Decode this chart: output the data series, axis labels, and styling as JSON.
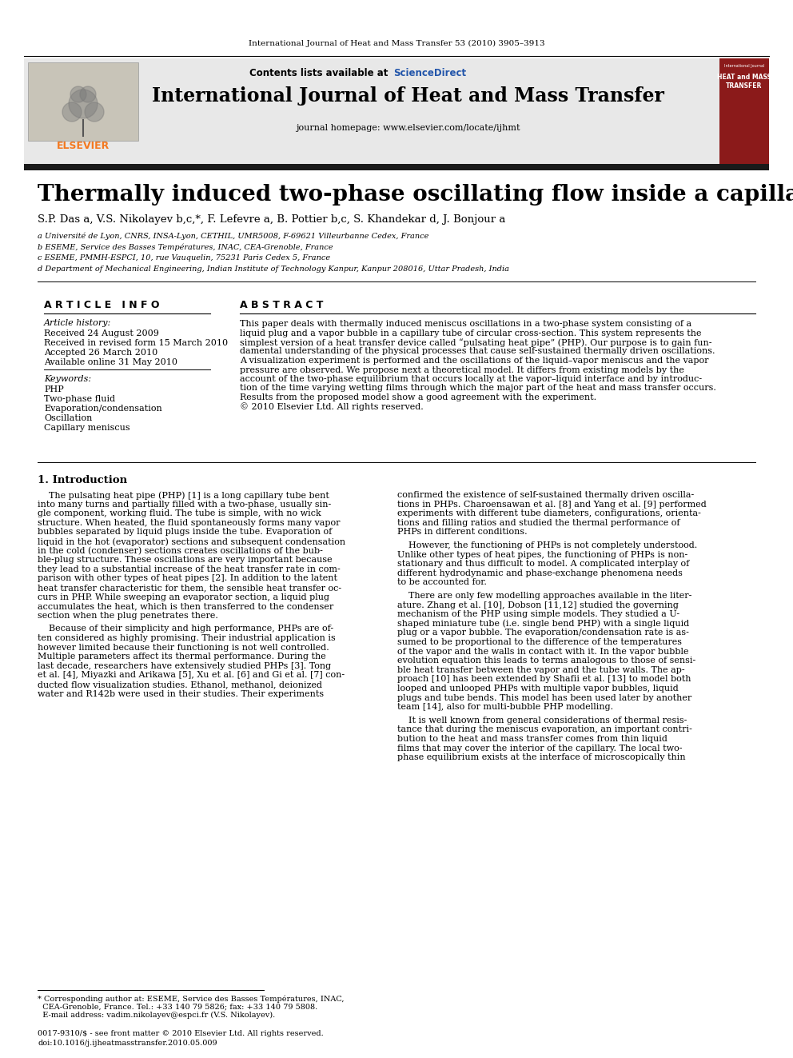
{
  "page_citation": "International Journal of Heat and Mass Transfer 53 (2010) 3905–3913",
  "journal_title": "International Journal of Heat and Mass Transfer",
  "journal_homepage": "journal homepage: www.elsevier.com/locate/ijhmt",
  "contents_available": "Contents lists available at ",
  "sciencedirect": "ScienceDirect",
  "article_title": "Thermally induced two-phase oscillating flow inside a capillary tube",
  "authors_text": "S.P. Das a, V.S. Nikolayev b,c,*, F. Lefevre a, B. Pottier b,c, S. Khandekar d, J. Bonjour a",
  "affil_a": "a Université de Lyon, CNRS, INSA-Lyon, CETHIL, UMR5008, F-69621 Villeurbanne Cedex, France",
  "affil_b": "b ESEME, Service des Basses Températures, INAC, CEA-Grenoble, France",
  "affil_c": "c ESEME, PMMH-ESPCI, 10, rue Vauquelin, 75231 Paris Cedex 5, France",
  "affil_d": "d Department of Mechanical Engineering, Indian Institute of Technology Kanpur, Kanpur 208016, Uttar Pradesh, India",
  "article_info_title": "A R T I C L E   I N F O",
  "article_history_title": "Article history:",
  "received": "Received 24 August 2009",
  "revised": "Received in revised form 15 March 2010",
  "accepted": "Accepted 26 March 2010",
  "available": "Available online 31 May 2010",
  "keywords_title": "Keywords:",
  "keywords": [
    "PHP",
    "Two-phase fluid",
    "Evaporation/condensation",
    "Oscillation",
    "Capillary meniscus"
  ],
  "abstract_title": "A B S T R A C T",
  "abstract_lines": [
    "This paper deals with thermally induced meniscus oscillations in a two-phase system consisting of a",
    "liquid plug and a vapor bubble in a capillary tube of circular cross-section. This system represents the",
    "simplest version of a heat transfer device called “pulsating heat pipe” (PHP). Our purpose is to gain fun-",
    "damental understanding of the physical processes that cause self-sustained thermally driven oscillations.",
    "A visualization experiment is performed and the oscillations of the liquid–vapor meniscus and the vapor",
    "pressure are observed. We propose next a theoretical model. It differs from existing models by the",
    "account of the two-phase equilibrium that occurs locally at the vapor–liquid interface and by introduc-",
    "tion of the time varying wetting films through which the major part of the heat and mass transfer occurs.",
    "Results from the proposed model show a good agreement with the experiment.",
    "© 2010 Elsevier Ltd. All rights reserved."
  ],
  "section1_title": "1. Introduction",
  "left_col_lines": [
    "    The pulsating heat pipe (PHP) [1] is a long capillary tube bent",
    "into many turns and partially filled with a two-phase, usually sin-",
    "gle component, working fluid. The tube is simple, with no wick",
    "structure. When heated, the fluid spontaneously forms many vapor",
    "bubbles separated by liquid plugs inside the tube. Evaporation of",
    "liquid in the hot (evaporator) sections and subsequent condensation",
    "in the cold (condenser) sections creates oscillations of the bub-",
    "ble-plug structure. These oscillations are very important because",
    "they lead to a substantial increase of the heat transfer rate in com-",
    "parison with other types of heat pipes [2]. In addition to the latent",
    "heat transfer characteristic for them, the sensible heat transfer oc-",
    "curs in PHP. While sweeping an evaporator section, a liquid plug",
    "accumulates the heat, which is then transferred to the condenser",
    "section when the plug penetrates there.",
    "",
    "    Because of their simplicity and high performance, PHPs are of-",
    "ten considered as highly promising. Their industrial application is",
    "however limited because their functioning is not well controlled.",
    "Multiple parameters affect its thermal performance. During the",
    "last decade, researchers have extensively studied PHPs [3]. Tong",
    "et al. [4], Miyazki and Arikawa [5], Xu et al. [6] and Gi et al. [7] con-",
    "ducted flow visualization studies. Ethanol, methanol, deionized",
    "water and R142b were used in their studies. Their experiments"
  ],
  "right_col_lines": [
    "confirmed the existence of self-sustained thermally driven oscilla-",
    "tions in PHPs. Charoensawan et al. [8] and Yang et al. [9] performed",
    "experiments with different tube diameters, configurations, orienta-",
    "tions and filling ratios and studied the thermal performance of",
    "PHPs in different conditions.",
    "",
    "    However, the functioning of PHPs is not completely understood.",
    "Unlike other types of heat pipes, the functioning of PHPs is non-",
    "stationary and thus difficult to model. A complicated interplay of",
    "different hydrodynamic and phase-exchange phenomena needs",
    "to be accounted for.",
    "",
    "    There are only few modelling approaches available in the liter-",
    "ature. Zhang et al. [10], Dobson [11,12] studied the governing",
    "mechanism of the PHP using simple models. They studied a U-",
    "shaped miniature tube (i.e. single bend PHP) with a single liquid",
    "plug or a vapor bubble. The evaporation/condensation rate is as-",
    "sumed to be proportional to the difference of the temperatures",
    "of the vapor and the walls in contact with it. In the vapor bubble",
    "evolution equation this leads to terms analogous to those of sensi-",
    "ble heat transfer between the vapor and the tube walls. The ap-",
    "proach [10] has been extended by Shafii et al. [13] to model both",
    "looped and unlooped PHPs with multiple vapor bubbles, liquid",
    "plugs and tube bends. This model has been used later by another",
    "team [14], also for multi-bubble PHP modelling.",
    "",
    "    It is well known from general considerations of thermal resis-",
    "tance that during the meniscus evaporation, an important contri-",
    "bution to the heat and mass transfer comes from thin liquid",
    "films that may cover the interior of the capillary. The local two-",
    "phase equilibrium exists at the interface of microscopically thin"
  ],
  "footnote_corresp1": "* Corresponding author at: ESEME, Service des Basses Températures, INAC,",
  "footnote_corresp2": "  CEA-Grenoble, France. Tel.: +33 140 79 5826; fax: +33 140 79 5808.",
  "footnote_email": "  E-mail address: vadim.nikolayev@espci.fr (V.S. Nikolayev).",
  "footer_issn": "0017-9310/$ - see front matter © 2010 Elsevier Ltd. All rights reserved.",
  "footer_doi": "doi:10.1016/j.ijheatmasstransfer.2010.05.009",
  "bg_color": "#ffffff",
  "header_bg": "#e8e8e8",
  "red_cover_color": "#8b1a1a",
  "elsevier_orange": "#f47920",
  "link_color": "#2255aa",
  "black_bar": "#1a1a1a",
  "logo_bg": "#c8c4b8"
}
